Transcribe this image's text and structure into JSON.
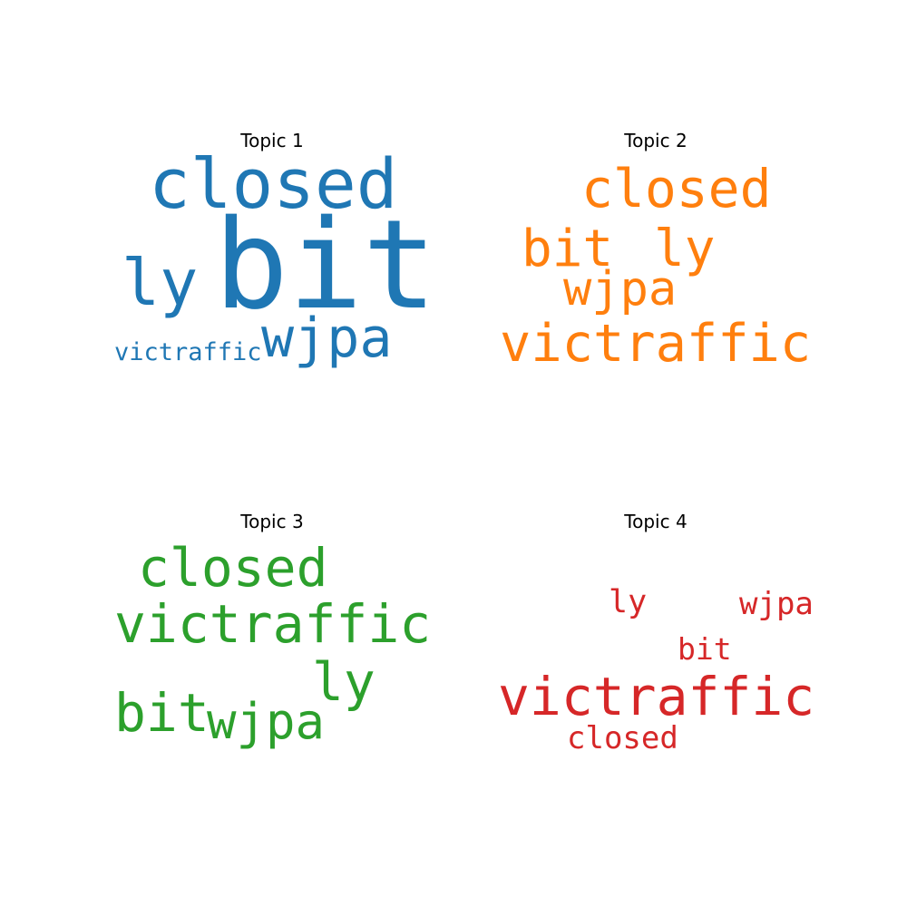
{
  "topics": [
    {
      "title": "Topic 1",
      "color": "#1f77b4",
      "words": {
        "bit": "bit",
        "closed": "closed",
        "ly": "ly",
        "wjpa": "wjpa",
        "victraffic": "victraffic"
      }
    },
    {
      "title": "Topic 2",
      "color": "#ff7f0e",
      "words": {
        "closed": "closed",
        "bit": "bit",
        "ly": "ly",
        "wjpa": "wjpa",
        "victraffic": "victraffic"
      }
    },
    {
      "title": "Topic 3",
      "color": "#2ca02c",
      "words": {
        "closed": "closed",
        "victraffic": "victraffic",
        "ly": "ly",
        "bit": "bit",
        "wjpa": "wjpa"
      }
    },
    {
      "title": "Topic 4",
      "color": "#d62728",
      "words": {
        "ly": "ly",
        "wjpa": "wjpa",
        "bit": "bit",
        "victraffic": "victraffic",
        "closed": "closed"
      }
    }
  ]
}
